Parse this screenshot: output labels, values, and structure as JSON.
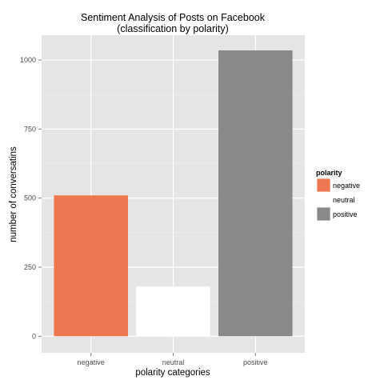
{
  "chart_data": {
    "type": "bar",
    "title": "Sentiment Analysis of Posts on Facebook",
    "subtitle": "(classification by polarity)",
    "xlabel": "polarity categories",
    "ylabel": "number of conversatins",
    "categories": [
      "negative",
      "neutral",
      "positive"
    ],
    "values": [
      510,
      180,
      1035
    ],
    "ylim": [
      -60,
      1090
    ],
    "yticks": [
      0,
      250,
      500,
      750,
      1000
    ],
    "grid": true,
    "legend": {
      "title": "polarity",
      "placement": "right",
      "entries": [
        {
          "label": "negative",
          "color": "#ec7751"
        },
        {
          "label": "neutral",
          "color": "#ffffff"
        },
        {
          "label": "positive",
          "color": "#898989"
        }
      ]
    },
    "colors": {
      "panel_bg": "#e5e5e5",
      "grid": "#ffffff"
    }
  }
}
